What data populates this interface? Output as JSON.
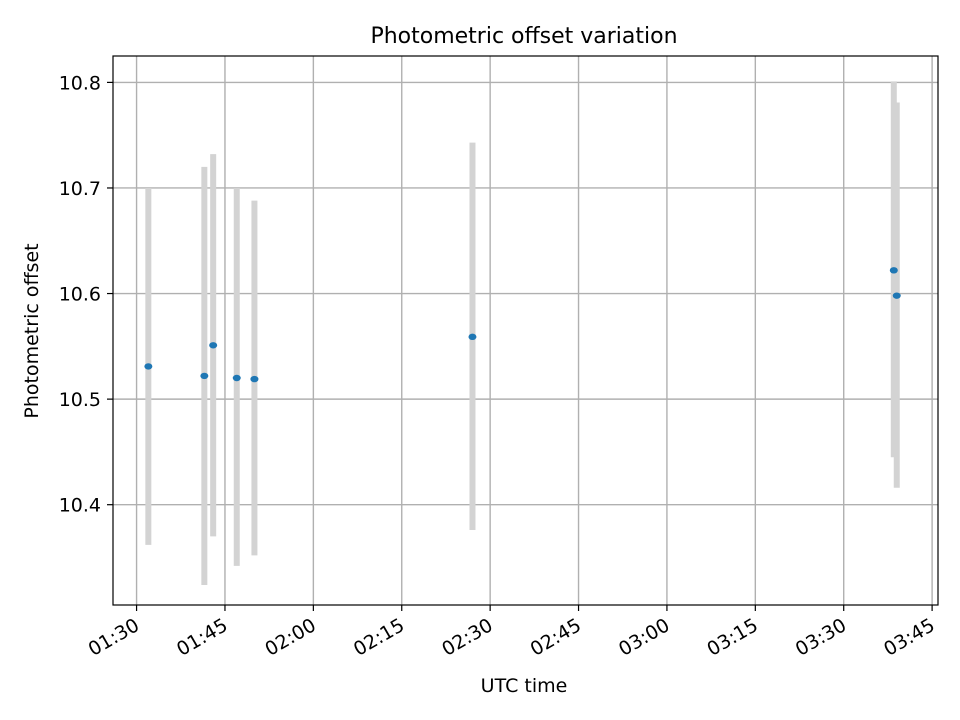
{
  "chart_data": {
    "type": "scatter",
    "title": "Photometric offset variation",
    "xlabel": "UTC time",
    "ylabel": "Photometric offset",
    "x_ticks": [
      "01:30",
      "01:45",
      "02:00",
      "02:15",
      "02:30",
      "02:45",
      "03:00",
      "03:15",
      "03:30",
      "03:45"
    ],
    "y_ticks": [
      "10.4",
      "10.5",
      "10.6",
      "10.7",
      "10.8"
    ],
    "xlim": [
      "01:26",
      "03:46"
    ],
    "ylim": [
      10.305,
      10.825
    ],
    "grid": true,
    "colors": {
      "point": "#1f77b4",
      "errorbar": "#d3d3d3",
      "grid": "#b0b0b0"
    },
    "series": [
      {
        "points": [
          {
            "x": "01:32",
            "y": 10.531,
            "err_low": 10.362,
            "err_high": 10.7
          },
          {
            "x": "01:41.5",
            "y": 10.522,
            "err_low": 10.324,
            "err_high": 10.72
          },
          {
            "x": "01:43",
            "y": 10.551,
            "err_low": 10.37,
            "err_high": 10.732
          },
          {
            "x": "01:47",
            "y": 10.52,
            "err_low": 10.342,
            "err_high": 10.7
          },
          {
            "x": "01:50",
            "y": 10.519,
            "err_low": 10.352,
            "err_high": 10.688
          },
          {
            "x": "02:27",
            "y": 10.559,
            "err_low": 10.376,
            "err_high": 10.743
          },
          {
            "x": "03:38.5",
            "y": 10.622,
            "err_low": 10.445,
            "err_high": 10.801
          },
          {
            "x": "03:39",
            "y": 10.598,
            "err_low": 10.416,
            "err_high": 10.781
          }
        ]
      }
    ]
  }
}
